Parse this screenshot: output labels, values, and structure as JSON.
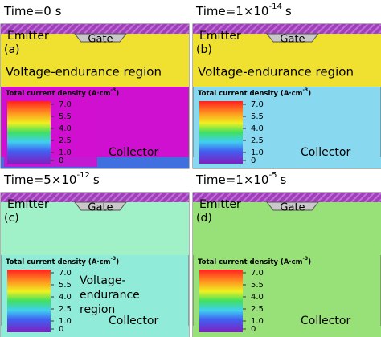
{
  "panels": [
    {
      "title": {
        "base": "Time=0 s"
      },
      "label": "(a)",
      "emitter": "Emitter",
      "gate": "Gate",
      "region": [
        "Voltage-endurance region"
      ],
      "collector": "Collector"
    },
    {
      "title": {
        "base": "Time=1×10",
        "exp": "-14",
        "unit": "s"
      },
      "label": "(b)",
      "emitter": "Emitter",
      "gate": "Gate",
      "region": [
        "Voltage-endurance region"
      ],
      "collector": "Collector"
    },
    {
      "title": {
        "base": "Time=5×10",
        "exp": "-12",
        "unit": "s"
      },
      "label": "(c)",
      "emitter": "Emitter",
      "gate": "Gate",
      "region": [
        "Voltage-",
        "endurance",
        "region"
      ],
      "collector": "Collector"
    },
    {
      "title": {
        "base": "Time=1×10",
        "exp": "-5",
        "unit": "s"
      },
      "label": "(d)",
      "emitter": "Emitter",
      "gate": "Gate",
      "region": [],
      "collector": "Collector"
    }
  ],
  "legend": {
    "title_base": "Total current density (A·cm",
    "title_exp": "-3",
    "title_end": ")",
    "ticks": [
      {
        "value": 7,
        "label": "7.0"
      },
      {
        "value": 5.5,
        "label": "5.5"
      },
      {
        "value": 4,
        "label": "4.0"
      },
      {
        "value": 2.5,
        "label": "2.5"
      },
      {
        "value": 1,
        "label": "1.0"
      },
      0
    ]
  }
}
